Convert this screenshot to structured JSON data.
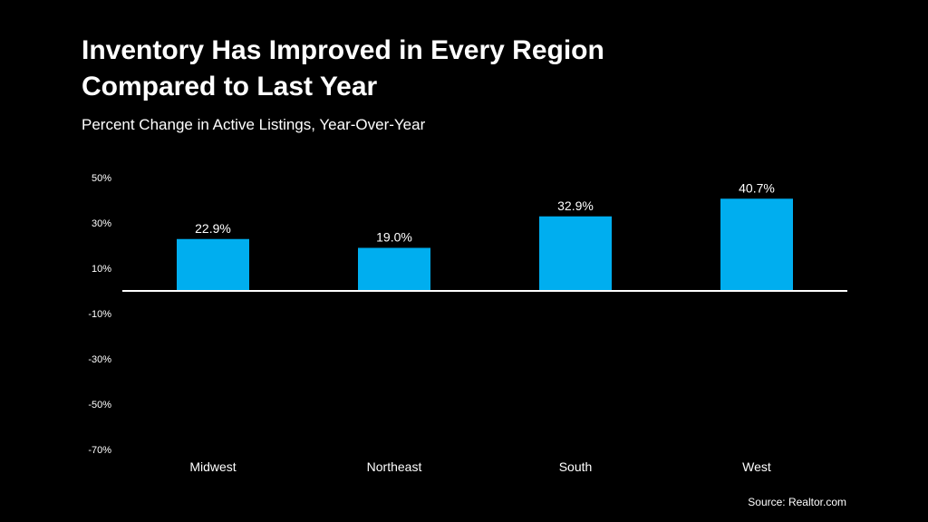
{
  "header": {
    "title_line1": "Inventory Has Improved in Every Region",
    "title_line2": "Compared to Last Year",
    "subtitle": "Percent Change in Active Listings, Year-Over-Year"
  },
  "source": "Source: Realtor.com",
  "colors": {
    "background": "#000000",
    "bar": "#00aeef",
    "text": "#ffffff",
    "baseline": "#ffffff"
  },
  "chart_data": {
    "type": "bar",
    "title": "Inventory Has Improved in Every Region Compared to Last Year",
    "subtitle": "Percent Change in Active Listings, Year-Over-Year",
    "categories": [
      "Midwest",
      "Northeast",
      "South",
      "West"
    ],
    "values": [
      22.9,
      19.0,
      32.9,
      40.7
    ],
    "data_labels": [
      "22.9%",
      "19.0%",
      "32.9%",
      "40.7%"
    ],
    "xlabel": "",
    "ylabel": "",
    "ylim": [
      -70,
      50
    ],
    "yticks": [
      50,
      30,
      10,
      -10,
      -30,
      -50,
      -70
    ],
    "ytick_labels": [
      "50%",
      "30%",
      "10%",
      "-10%",
      "-30%",
      "-50%",
      "-70%"
    ],
    "grid": false,
    "legend": "none"
  }
}
